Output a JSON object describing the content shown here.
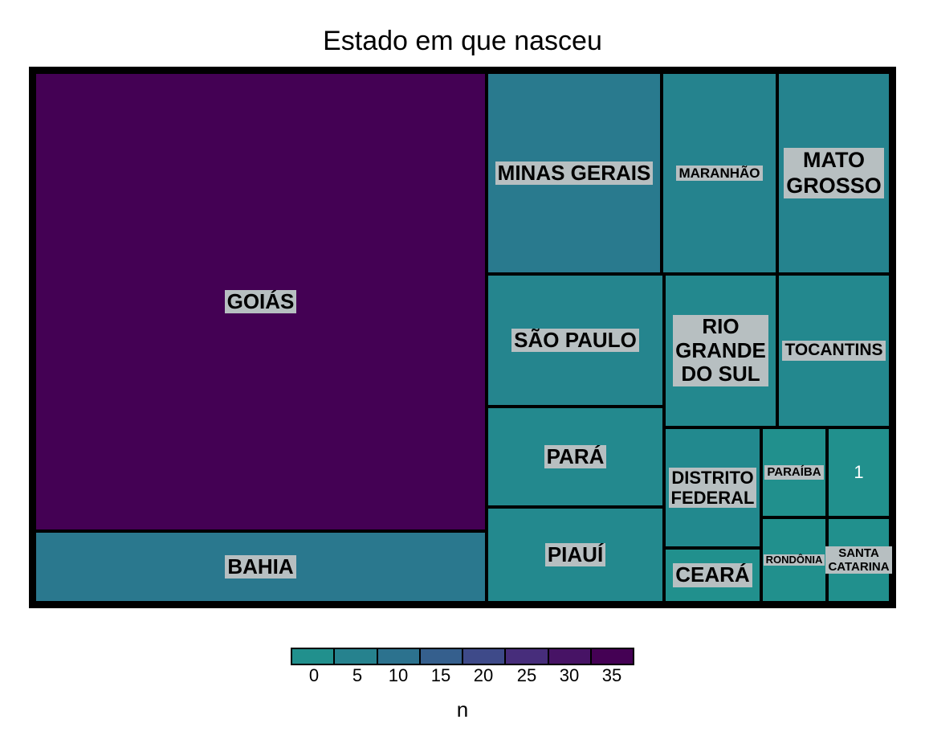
{
  "chart_data": {
    "type": "treemap",
    "title": "Estado em que nasceu",
    "items": [
      {
        "name": "GOIÁS",
        "value": 37,
        "color": "#440154"
      },
      {
        "name": "BAHIA",
        "value": 7,
        "color": "#2a788e"
      },
      {
        "name": "MINAS GERAIS",
        "value": 6,
        "color": "#297a8e"
      },
      {
        "name": "MARANHÃO",
        "value": 4,
        "color": "#25838e"
      },
      {
        "name": "MATO\nGROSSO",
        "value": 4,
        "color": "#25838e"
      },
      {
        "name": "SÃO PAULO",
        "value": 4,
        "color": "#25858e"
      },
      {
        "name": "RIO\nGRANDE\nDO SUL",
        "value": 3,
        "color": "#23888e"
      },
      {
        "name": "TOCANTINS",
        "value": 3,
        "color": "#23888e"
      },
      {
        "name": "PARÁ",
        "value": 3,
        "color": "#23898e"
      },
      {
        "name": "PIAUÍ",
        "value": 3,
        "color": "#23898e"
      },
      {
        "name": "DISTRITO\nFEDERAL",
        "value": 2,
        "color": "#22898e"
      },
      {
        "name": "CEARÁ",
        "value": 1,
        "color": "#21908d"
      },
      {
        "name": "PARAÍBA",
        "value": 1,
        "color": "#21908d"
      },
      {
        "name": "1",
        "value": 1,
        "color": "#21908d"
      },
      {
        "name": "RONDÔNIA",
        "value": 1,
        "color": "#21908d"
      },
      {
        "name": "SANTA\nCATARINA",
        "value": 1,
        "color": "#21908d"
      }
    ],
    "legend": {
      "title": "n",
      "ticks": [
        "0",
        "5",
        "10",
        "15",
        "20",
        "25",
        "30",
        "35"
      ],
      "colors": [
        "#21908d",
        "#26828e",
        "#2c728e",
        "#355f8d",
        "#3e4a89",
        "#472d7b",
        "#471365",
        "#440154"
      ]
    }
  }
}
